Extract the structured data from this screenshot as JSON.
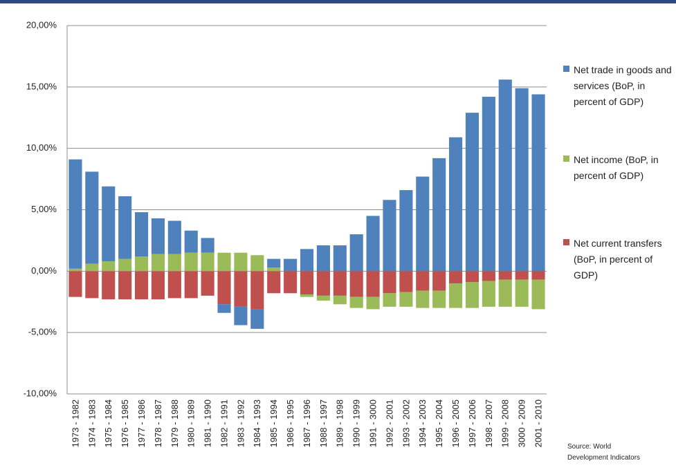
{
  "chart_data": {
    "type": "stacked-bar",
    "categories": [
      "1973 - 1982",
      "1974 - 1983",
      "1975 - 1984",
      "1976 - 1985",
      "1977 - 1986",
      "1978 - 1987",
      "1979 - 1988",
      "1980 - 1989",
      "1981 - 1990",
      "1982 - 1991",
      "1983 - 1992",
      "1984 - 1993",
      "1985 - 1994",
      "1986 - 1995",
      "1987 - 1996",
      "1988 - 1997",
      "1989 - 1998",
      "1990 - 1999",
      "1991 - 3000",
      "1992 - 2001",
      "1993 - 2002",
      "1994 - 2003",
      "1995 - 2004",
      "1996 - 2005",
      "1997 - 2006",
      "1998 - 2007",
      "1999 - 2008",
      "3000 - 2009",
      "2001 - 2010"
    ],
    "series": [
      {
        "name": "Net trade in goods and services (BoP, in percent of GDP)",
        "color": "#4f81bd",
        "values": [
          8.9,
          7.5,
          6.1,
          5.1,
          3.6,
          2.9,
          2.7,
          1.8,
          1.2,
          -0.7,
          -1.5,
          -1.6,
          0.7,
          1.0,
          1.8,
          2.1,
          2.1,
          3.0,
          4.5,
          5.8,
          6.6,
          7.7,
          9.2,
          10.9,
          12.9,
          14.2,
          15.6,
          14.9,
          14.4
        ]
      },
      {
        "name": "Net income (BoP, in percent of GDP)",
        "color": "#9bbb59",
        "values": [
          0.2,
          0.6,
          0.8,
          1.0,
          1.2,
          1.4,
          1.4,
          1.5,
          1.5,
          1.5,
          1.5,
          1.3,
          0.3,
          0.0,
          -0.2,
          -0.4,
          -0.7,
          -0.9,
          -1.0,
          -1.1,
          -1.2,
          -1.4,
          -1.4,
          -2.0,
          -2.1,
          -2.1,
          -2.2,
          -2.2,
          -2.4
        ]
      },
      {
        "name": "Net current transfers (BoP, in percent of GDP)",
        "color": "#c0504d",
        "values": [
          -2.1,
          -2.2,
          -2.3,
          -2.3,
          -2.3,
          -2.3,
          -2.2,
          -2.2,
          -2.0,
          -2.7,
          -2.9,
          -3.1,
          -1.8,
          -1.8,
          -1.9,
          -2.0,
          -2.0,
          -2.1,
          -2.1,
          -1.8,
          -1.7,
          -1.6,
          -1.6,
          -1.0,
          -0.9,
          -0.8,
          -0.7,
          -0.7,
          -0.7
        ]
      }
    ],
    "ylim": [
      -10,
      20
    ],
    "yticks": [
      {
        "value": -10,
        "label": "-10,00%"
      },
      {
        "value": -5,
        "label": "-5,00%"
      },
      {
        "value": 0,
        "label": "0,00%"
      },
      {
        "value": 5,
        "label": "5,00%"
      },
      {
        "value": 10,
        "label": "10,00%"
      },
      {
        "value": 15,
        "label": "15,00%"
      },
      {
        "value": 20,
        "label": "20,00%"
      }
    ],
    "grid": true,
    "legend": "right",
    "source": [
      "Source: World",
      "Development Indicators"
    ]
  }
}
